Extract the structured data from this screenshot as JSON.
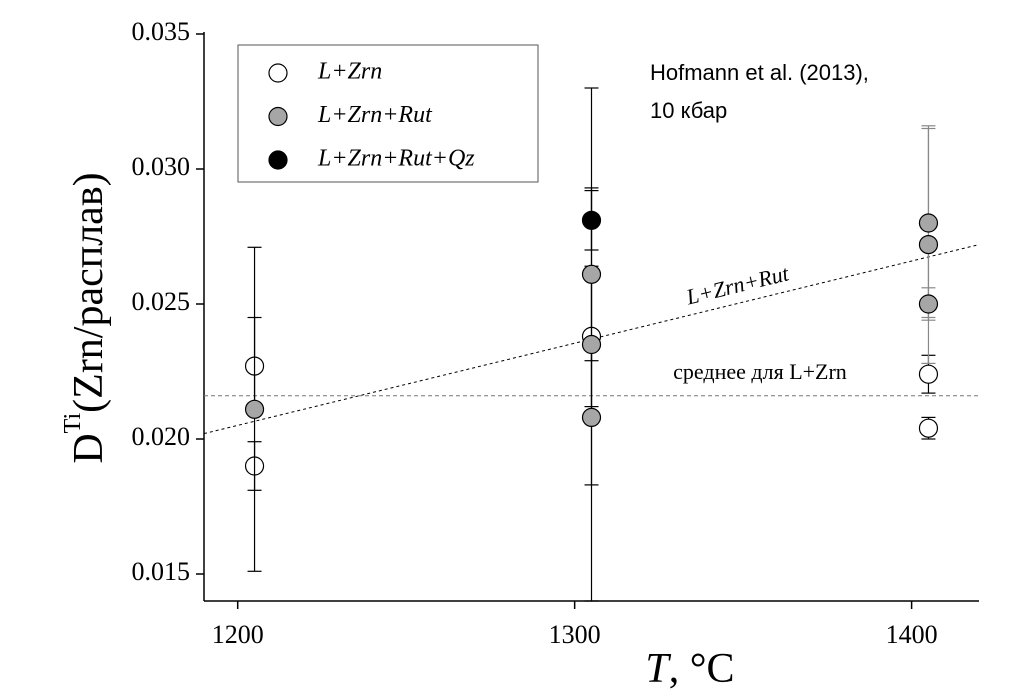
{
  "chart_data": {
    "type": "scatter",
    "xlim": [
      1190,
      1420
    ],
    "xticks": [
      1200,
      1300,
      1400
    ],
    "ylim": [
      0.014,
      0.035
    ],
    "yticks": [
      0.015,
      {
        "value": 0.02,
        "label": "0.020"
      },
      0.025,
      {
        "value": 0.03,
        "label": "0.030"
      },
      0.035
    ],
    "x_label": {
      "var": "T",
      "unit": ", °C"
    },
    "y_label": {
      "main": "D",
      "sup": "Ti",
      "rest": "(Zrn/расплав)"
    },
    "annotation": [
      "Hofmann et al. (2013),",
      "10 кбар"
    ],
    "series": [
      {
        "name": "L+Zrn",
        "color": "#ffffff",
        "x": [
          1205,
          1205,
          1305,
          1405,
          1405
        ],
        "values": [
          0.0227,
          0.019,
          0.0238,
          0.0224,
          0.0204
        ],
        "errors": [
          0.0018,
          0.0009,
          0.0026,
          0.0007,
          0.0004
        ]
      },
      {
        "name": "L+Zrn+Rut",
        "color": "#a6a6a6",
        "x": [
          1205,
          1305,
          1305,
          1305,
          1405,
          1405,
          1405
        ],
        "values": [
          0.0211,
          0.0261,
          0.0235,
          0.0208,
          0.028,
          0.0272,
          0.025
        ],
        "errors": [
          0.006,
          0.0032,
          0.0095,
          0.0025,
          0.0035,
          0.0044,
          0.0006
        ]
      },
      {
        "name": "L+Zrn+Rut+Qz",
        "color": "#000000",
        "x": [
          1305
        ],
        "values": [
          0.0281
        ],
        "errors": [
          0.0011
        ]
      }
    ],
    "lines": [
      {
        "label": "L+Zrn+Rut",
        "x": [
          1190,
          1420
        ],
        "y": [
          0.0202,
          0.0272
        ]
      },
      {
        "label": "среднее для L+Zrn",
        "x": [
          1190,
          1420
        ],
        "y": [
          0.0216,
          0.0216
        ]
      }
    ]
  }
}
